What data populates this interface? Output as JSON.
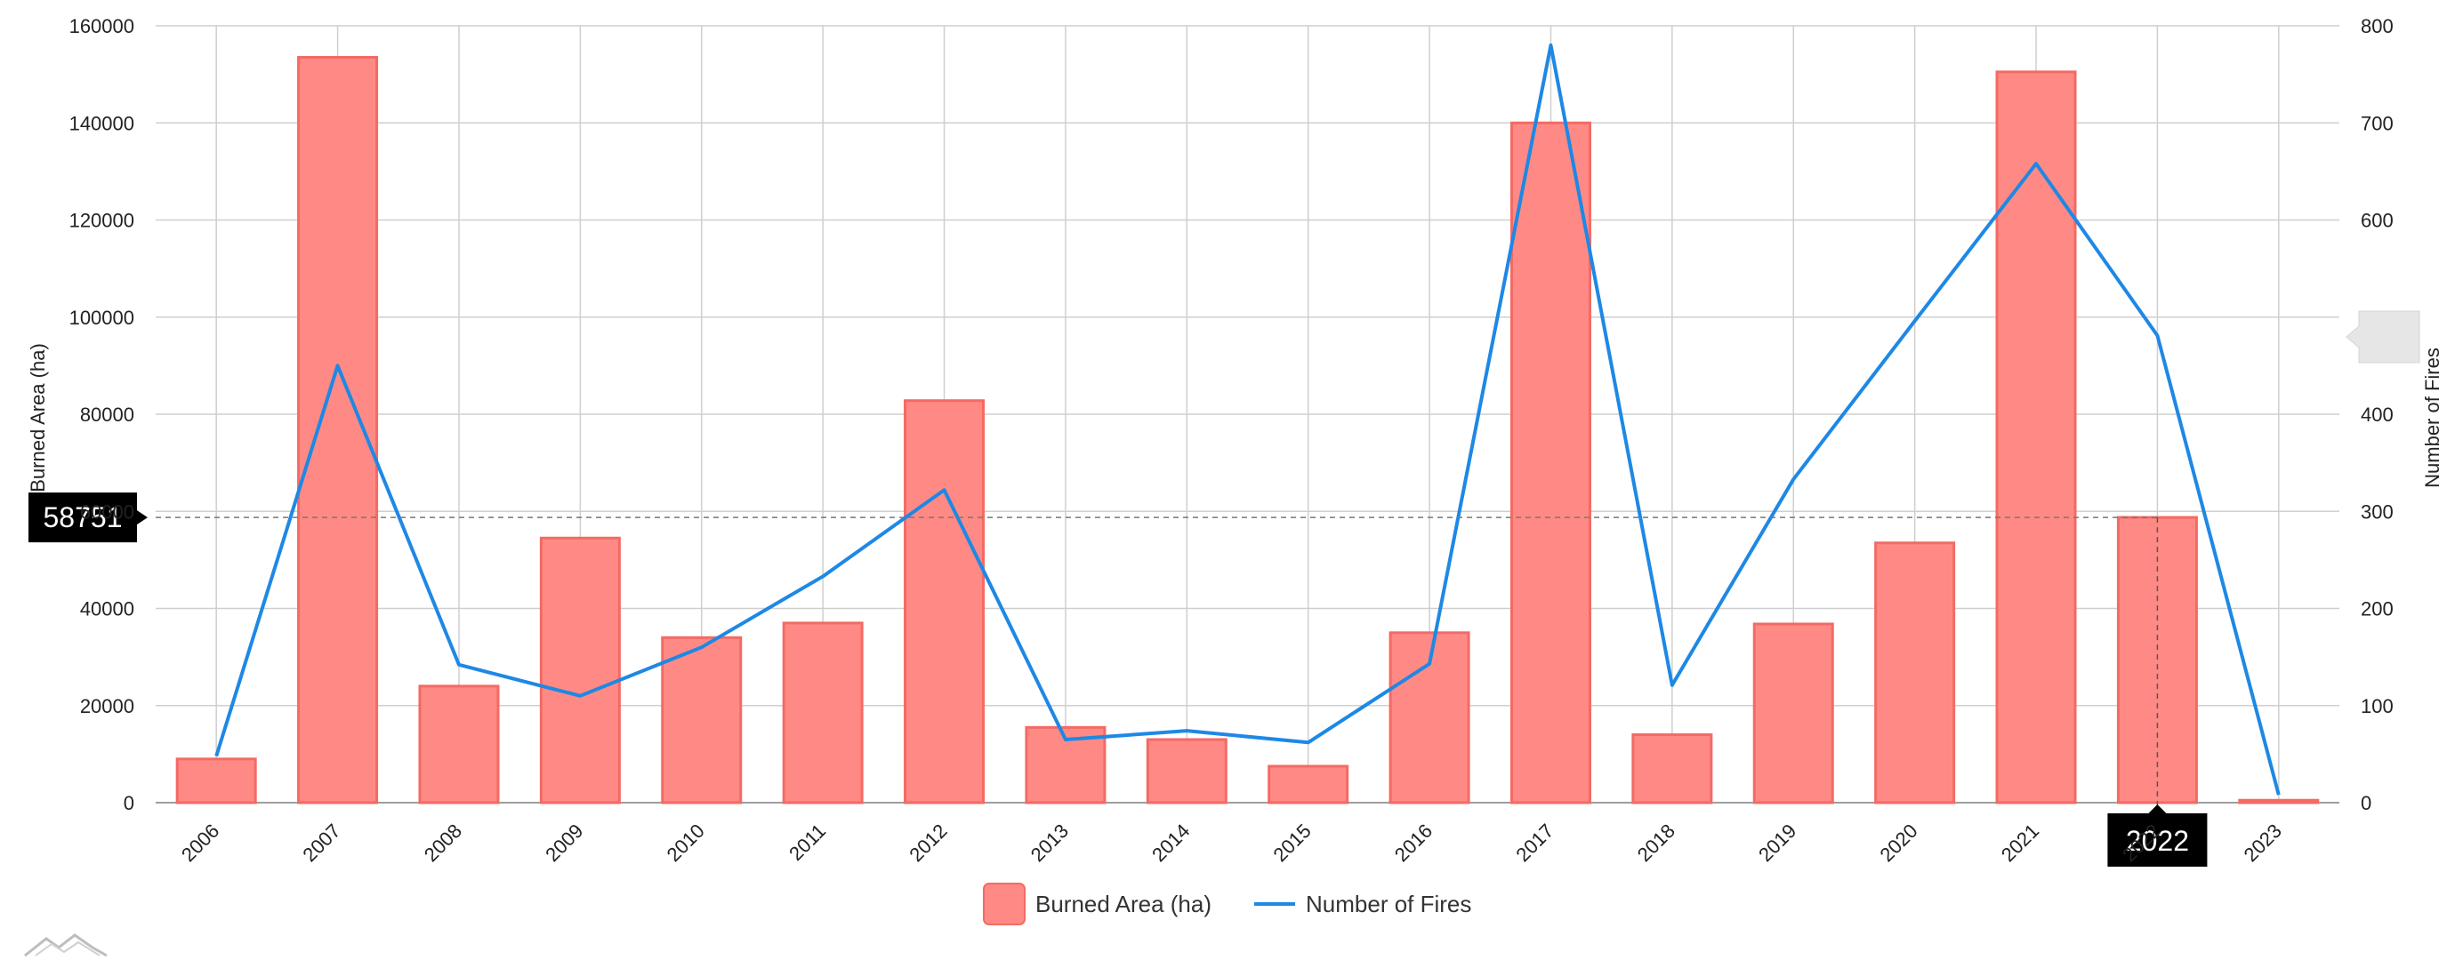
{
  "chart_data": {
    "type": "bar",
    "categories": [
      "2006",
      "2007",
      "2008",
      "2009",
      "2010",
      "2011",
      "2012",
      "2013",
      "2014",
      "2015",
      "2016",
      "2017",
      "2018",
      "2019",
      "2020",
      "2021",
      "2022",
      "2023"
    ],
    "series": [
      {
        "name": "Burned Area (ha)",
        "type": "bar",
        "axis": "left",
        "color": "#ff8a85",
        "values": [
          9000,
          153500,
          24000,
          54500,
          34000,
          37000,
          82800,
          15500,
          13000,
          7500,
          35000,
          140000,
          14000,
          36800,
          53500,
          150500,
          58751,
          500
        ]
      },
      {
        "name": "Number of Fires",
        "type": "line",
        "axis": "right",
        "color": "#1e88e5",
        "values": [
          48,
          450,
          142,
          110,
          160,
          233,
          322,
          65,
          74,
          62,
          143,
          780,
          121,
          333,
          496,
          658,
          481,
          8
        ]
      }
    ],
    "ylabel": "Burned Area (ha)",
    "ylim": [
      0,
      160000
    ],
    "yticks": [
      0,
      20000,
      40000,
      60000,
      80000,
      100000,
      120000,
      140000,
      160000
    ],
    "y2label": "Number of Fires",
    "y2lim": [
      0,
      800
    ],
    "y2ticks": [
      0,
      100,
      200,
      300,
      400,
      500,
      600,
      700,
      800
    ],
    "grid": true,
    "legend": "bottom-center",
    "cursor": {
      "category": "2022",
      "value": "58751"
    }
  },
  "colors": {
    "bar_fill": "#ff8a85",
    "bar_stroke": "#f46a64",
    "line": "#1e88e5",
    "grid": "#cfcfcf",
    "cursor_bg": "#000000"
  }
}
